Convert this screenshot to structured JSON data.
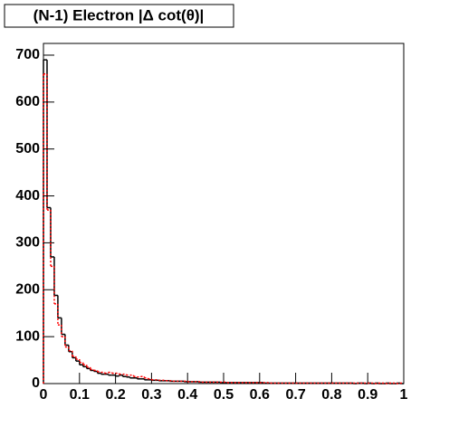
{
  "chart_data": {
    "type": "histogram",
    "title": "(N-1) Electron |Δ cot(θ)|",
    "bins": [
      0,
      0.01,
      0.02,
      0.03,
      0.04,
      0.05,
      0.06,
      0.07,
      0.08,
      0.09,
      0.1,
      0.11,
      0.12,
      0.13,
      0.14,
      0.15,
      0.16,
      0.17,
      0.18,
      0.19,
      0.2,
      0.21,
      0.22,
      0.23,
      0.24,
      0.25,
      0.26,
      0.27,
      0.28,
      0.29,
      0.3,
      0.31,
      0.32,
      0.33,
      0.34,
      0.35,
      0.36,
      0.37,
      0.38,
      0.39,
      0.4,
      0.41,
      0.42,
      0.43,
      0.44,
      0.45,
      0.46,
      0.47,
      0.48,
      0.49,
      0.5,
      0.51,
      0.52,
      0.53,
      0.54,
      0.55,
      0.56,
      0.57,
      0.58,
      0.59,
      0.6,
      0.61,
      0.62,
      0.63,
      0.64,
      0.65,
      0.66,
      0.67,
      0.68,
      0.69,
      0.7,
      0.71,
      0.72,
      0.73,
      0.74,
      0.75,
      0.76,
      0.77,
      0.78,
      0.79,
      0.8,
      0.81,
      0.82,
      0.83,
      0.84,
      0.85,
      0.86,
      0.87,
      0.88,
      0.89,
      0.9,
      0.91,
      0.92,
      0.93,
      0.94,
      0.95,
      0.96,
      0.97,
      0.98,
      0.99,
      1
    ],
    "series": [
      {
        "color": "#000000",
        "dashed": false,
        "values": [
          690,
          375,
          270,
          188,
          140,
          105,
          82,
          68,
          55,
          48,
          40,
          36,
          32,
          28,
          26,
          22,
          20,
          20,
          18,
          18,
          16,
          18,
          15,
          14,
          12,
          12,
          10,
          10,
          8,
          8,
          7,
          7,
          6,
          6,
          6,
          5,
          5,
          5,
          5,
          4,
          4,
          4,
          4,
          3,
          3,
          3,
          3,
          3,
          3,
          2,
          2,
          2,
          2,
          2,
          2,
          2,
          2,
          2,
          2,
          2,
          2,
          1,
          1,
          1,
          1,
          1,
          1,
          1,
          1,
          1,
          1,
          1,
          1,
          1,
          1,
          1,
          1,
          1,
          1,
          1,
          1,
          1,
          1,
          1,
          1,
          1,
          0,
          1,
          1,
          0,
          1,
          0,
          1,
          0,
          0,
          1,
          0,
          0,
          1,
          0
        ]
      },
      {
        "color": "#ff0000",
        "dashed": true,
        "values": [
          660,
          370,
          250,
          170,
          125,
          100,
          78,
          70,
          58,
          52,
          45,
          40,
          35,
          30,
          28,
          25,
          24,
          22,
          24,
          22,
          22,
          20,
          20,
          18,
          18,
          15,
          14,
          15,
          12,
          10,
          8,
          8,
          7,
          7,
          6,
          6,
          5,
          5,
          5,
          5,
          4,
          4,
          4,
          4,
          3,
          3,
          3,
          3,
          3,
          3,
          3,
          2,
          2,
          2,
          2,
          2,
          2,
          2,
          2,
          2,
          2,
          2,
          2,
          1,
          1,
          1,
          1,
          1,
          1,
          1,
          1,
          1,
          1,
          1,
          1,
          1,
          1,
          1,
          1,
          1,
          1,
          1,
          1,
          1,
          1,
          1,
          1,
          1,
          1,
          1,
          1,
          1,
          0,
          1,
          1,
          0,
          1,
          1,
          0,
          1
        ]
      }
    ],
    "xlim": [
      0,
      1
    ],
    "xticks": [
      0,
      0.1,
      0.2,
      0.3,
      0.4,
      0.5,
      0.6,
      0.7,
      0.8,
      0.9,
      1
    ],
    "ylim": [
      0,
      725
    ],
    "yticks": [
      0,
      100,
      200,
      300,
      400,
      500,
      600,
      700
    ]
  }
}
